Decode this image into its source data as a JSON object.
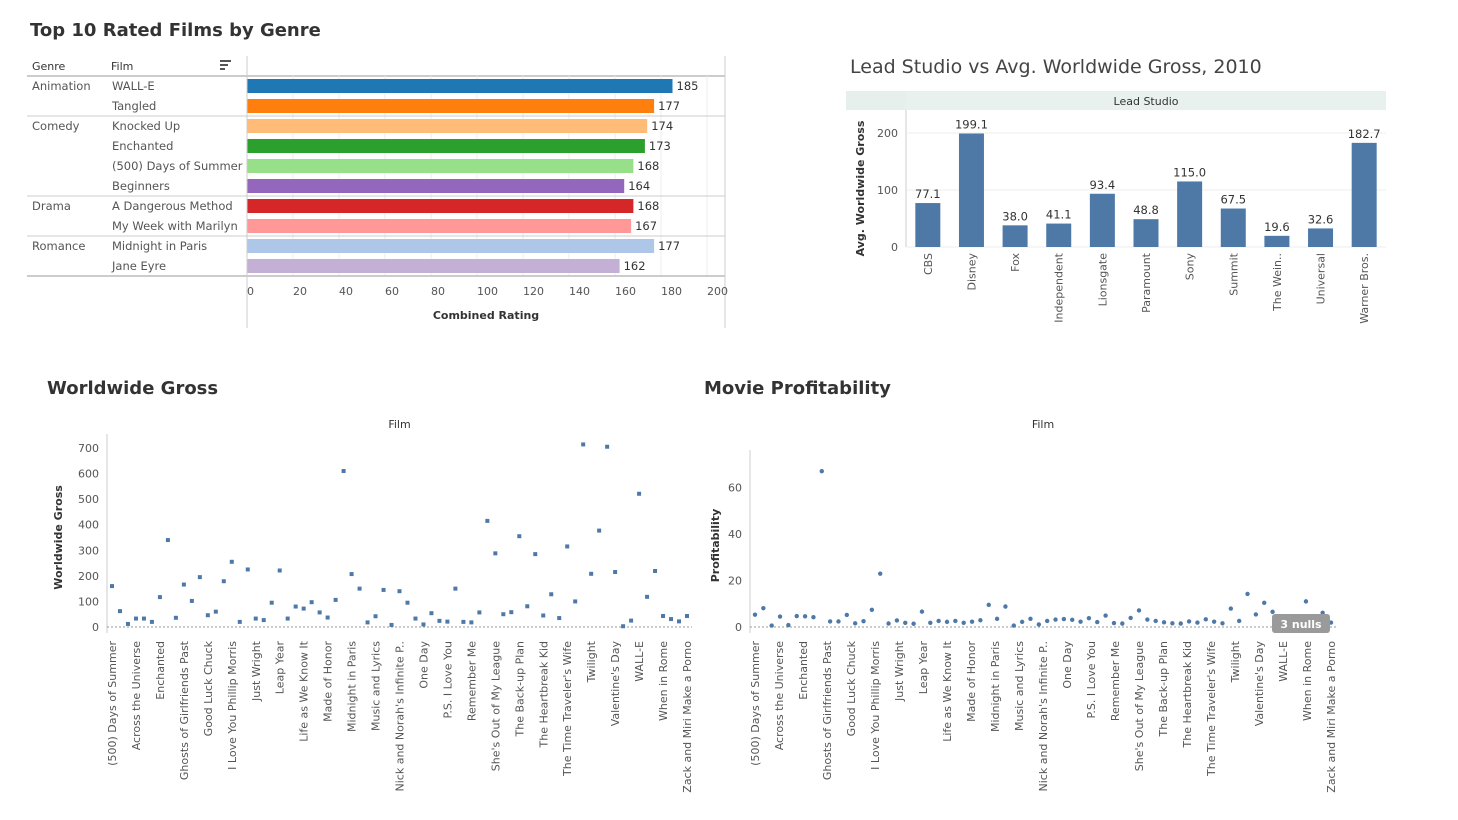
{
  "panels": {
    "top_rated": {
      "title": "Top 10 Rated Films by Genre"
    },
    "studio": {
      "title": "Lead Studio vs Avg. Worldwide Gross, 2010"
    },
    "gross": {
      "title": "Worldwide Gross"
    },
    "profit": {
      "title": "Movie Profitability"
    }
  },
  "icons": {
    "sort": "sort-descending-icon"
  },
  "colors": {
    "studio_bar": "#4e79a7",
    "dot": "#4e79a7",
    "header_band": "#e6efec",
    "grid": "#e6e6e6"
  },
  "chart_data": [
    {
      "id": "top_rated",
      "type": "bar",
      "orientation": "horizontal",
      "title": "Top 10 Rated Films by Genre",
      "headers": {
        "genre": "Genre",
        "film": "Film"
      },
      "xlabel": "Combined Rating",
      "xlim": [
        0,
        200
      ],
      "xticks": [
        0,
        20,
        40,
        60,
        80,
        100,
        120,
        140,
        160,
        180,
        200
      ],
      "groups": [
        {
          "genre": "Animation",
          "rows": [
            {
              "film": "WALL-E",
              "value": 185,
              "color": "#1f77b4"
            },
            {
              "film": "Tangled",
              "value": 177,
              "color": "#ff7f0e"
            }
          ]
        },
        {
          "genre": "Comedy",
          "rows": [
            {
              "film": "Knocked Up",
              "value": 174,
              "color": "#ffbb78"
            },
            {
              "film": "Enchanted",
              "value": 173,
              "color": "#2ca02c"
            },
            {
              "film": "(500) Days of Summer",
              "value": 168,
              "color": "#98df8a"
            },
            {
              "film": "Beginners",
              "value": 164,
              "color": "#9467bd"
            }
          ]
        },
        {
          "genre": "Drama",
          "rows": [
            {
              "film": "A Dangerous Method",
              "value": 168,
              "color": "#d62728"
            },
            {
              "film": "My Week with Marilyn",
              "value": 167,
              "color": "#ff9896"
            }
          ]
        },
        {
          "genre": "Romance",
          "rows": [
            {
              "film": "Midnight in Paris",
              "value": 177,
              "color": "#aec7e8"
            },
            {
              "film": "Jane Eyre",
              "value": 162,
              "color": "#c5b0d5"
            }
          ]
        }
      ]
    },
    {
      "id": "studio",
      "type": "bar",
      "title": "Lead Studio vs Avg. Worldwide Gross, 2010",
      "header": "Lead Studio",
      "ylabel": "Avg. Worldwide Gross",
      "ylim": [
        0,
        200
      ],
      "yticks": [
        0,
        100,
        200
      ],
      "categories": [
        "CBS",
        "Disney",
        "Fox",
        "Independent",
        "Lionsgate",
        "Paramount",
        "Sony",
        "Summit",
        "The Wein..",
        "Universal",
        "Warner Bros."
      ],
      "values": [
        77.1,
        199.1,
        38.0,
        41.1,
        93.4,
        48.8,
        115.0,
        67.5,
        19.6,
        32.6,
        182.7
      ],
      "value_labels": [
        "77.1",
        "199.1",
        "38.0",
        "41.1",
        "93.4",
        "48.8",
        "115.0",
        "67.5",
        "19.6",
        "32.6",
        "182.7"
      ]
    },
    {
      "id": "gross",
      "type": "scatter",
      "title": "Worldwide Gross",
      "xlabel": "Film",
      "ylabel": "Worldwide Gross",
      "ylim": [
        0,
        700
      ],
      "yticks": [
        0,
        100,
        200,
        300,
        400,
        500,
        600,
        700
      ],
      "x_labels": [
        "(500) Days of Summer",
        "Across the Universe",
        "Enchanted",
        "Ghosts of Girlfriends Past",
        "Good Luck Chuck",
        "I Love You Phillip Morris",
        "Just Wright",
        "Leap Year",
        "Life as We Know It",
        "Made of Honor",
        "Midnight in Paris",
        "Music and Lyrics",
        "Nick and Norah's Infinite P..",
        "One Day",
        "P.S. I Love You",
        "Remember Me",
        "She's Out of My League",
        "The Back-up Plan",
        "The Heartbreak Kid",
        "The Time Traveler's Wife",
        "Twilight",
        "Valentine's Day",
        "WALL-E",
        "When in Rome",
        "Zack and Miri Make a Porno"
      ],
      "values": [
        160,
        62,
        12,
        33,
        33,
        20,
        117,
        340,
        36,
        166,
        102,
        195,
        46,
        60,
        179,
        255,
        20,
        225,
        33,
        27,
        95,
        221,
        33,
        80,
        72,
        97,
        57,
        37,
        106,
        610,
        207,
        150,
        18,
        42,
        145,
        8,
        140,
        95,
        33,
        10,
        54,
        24,
        21,
        150,
        20,
        18,
        57,
        415,
        288,
        50,
        58,
        355,
        81,
        285,
        45,
        128,
        35,
        315,
        100,
        714,
        208,
        377,
        705,
        215,
        3,
        25,
        521,
        118,
        219,
        43,
        31,
        22,
        43
      ]
    },
    {
      "id": "profit",
      "type": "scatter",
      "title": "Movie Profitability",
      "xlabel": "Film",
      "ylabel": "Profitability",
      "ylim": [
        0,
        70
      ],
      "yticks": [
        0,
        20,
        40,
        60
      ],
      "null_indicator": "3 nulls",
      "x_labels": [
        "(500) Days of Summer",
        "Across the Universe",
        "Enchanted",
        "Ghosts of Girlfriends Past",
        "Good Luck Chuck",
        "I Love You Phillip Morris",
        "Just Wright",
        "Leap Year",
        "Life as We Know It",
        "Made of Honor",
        "Midnight in Paris",
        "Music and Lyrics",
        "Nick and Norah's Infinite P..",
        "One Day",
        "P.S. I Love You",
        "Remember Me",
        "She's Out of My League",
        "The Back-up Plan",
        "The Heartbreak Kid",
        "The Time Traveler's Wife",
        "Twilight",
        "Valentine's Day",
        "WALL-E",
        "When in Rome",
        "Zack and Miri Make a Porno"
      ],
      "values": [
        5.3,
        8.1,
        0.6,
        4.5,
        0.8,
        4.7,
        4.6,
        4.2,
        66.9,
        2.4,
        2.4,
        5.2,
        1.6,
        2.5,
        7.4,
        22.9,
        1.5,
        2.8,
        1.8,
        1.4,
        6.6,
        1.8,
        2.6,
        2.2,
        2.6,
        1.8,
        2.3,
        2.9,
        9.5,
        3.5,
        8.8,
        0.6,
        2.2,
        3.5,
        1.1,
        2.6,
        3.2,
        3.4,
        3.1,
        2.3,
        3.8,
        2.1,
        4.9,
        1.7,
        1.5,
        3.9,
        7.1,
        3.2,
        2.6,
        2.0,
        1.6,
        1.5,
        2.4,
        1.9,
        3.3,
        2.3,
        1.6,
        7.9,
        2.6,
        14.2,
        5.4,
        10.4,
        6.5,
        3.8,
        4.0,
        0.2,
        11.0,
        0.5,
        6.1,
        1.9
      ]
    }
  ]
}
